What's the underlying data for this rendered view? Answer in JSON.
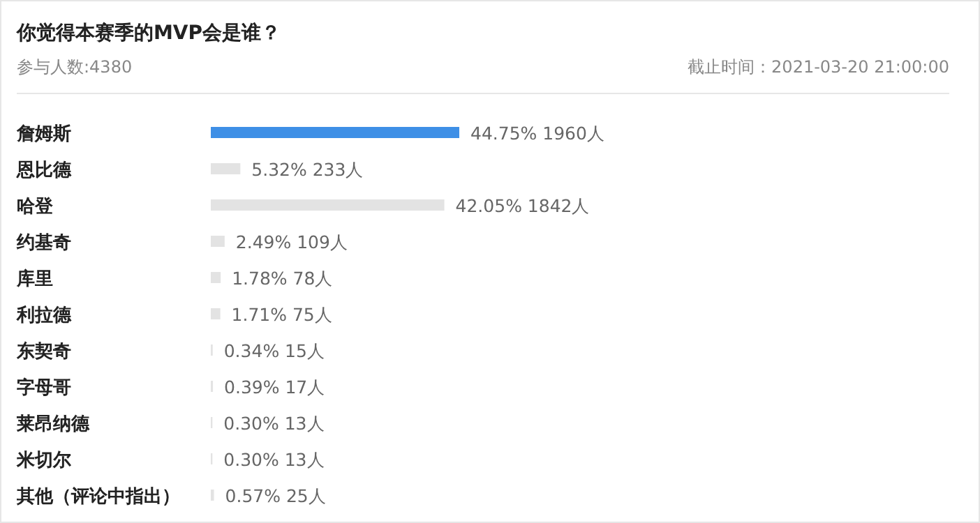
{
  "chart_data": {
    "type": "bar",
    "orientation": "horizontal",
    "title": "你觉得本赛季的MVP会是谁？",
    "subtitle": "参与人数:4380",
    "annotations": [
      "截止时间：2021-03-20 21:00:00"
    ],
    "categories": [
      "詹姆斯",
      "恩比德",
      "哈登",
      "约基奇",
      "库里",
      "利拉德",
      "东契奇",
      "字母哥",
      "莱昂纳德",
      "米切尔",
      "其他（评论中指出）"
    ],
    "values": [
      1960,
      233,
      1842,
      109,
      78,
      75,
      15,
      17,
      13,
      13,
      25
    ],
    "value_labels": [
      "44.75%  1960人",
      "5.32%  233人",
      "42.05%  1842人",
      "2.49%  109人",
      "1.78%  78人",
      "1.71%  75人",
      "0.34%  15人",
      "0.39%  17人",
      "0.30%  13人",
      "0.30%  13人",
      "0.57%  25人"
    ],
    "colors": [
      "#3e8fe6",
      "#e3e3e3",
      "#e3e3e3",
      "#e3e3e3",
      "#e3e3e3",
      "#e3e3e3",
      "#e3e3e3",
      "#e3e3e3",
      "#e3e3e3",
      "#e3e3e3",
      "#e3e3e3"
    ]
  }
}
